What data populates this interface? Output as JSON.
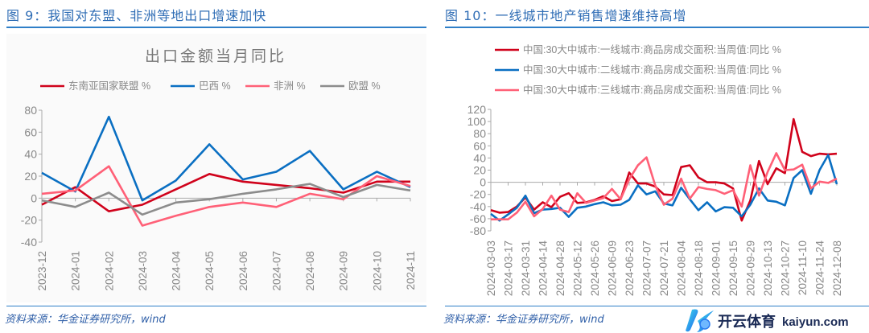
{
  "left": {
    "heading": "图 9：我国对东盟、非洲等地出口增速加快",
    "source": "资料来源：华金证券研究所，wind"
  },
  "right": {
    "heading": "图 10：一线城市地产销售增速维持高增",
    "source": "资料来源：华金证券研究所，wind"
  },
  "watermark": {
    "name": "开云体育",
    "domain": "kaiyun.com"
  },
  "chart_data": [
    {
      "type": "line",
      "title": "出口金额当月同比",
      "categories": [
        "2023-12",
        "2024-01",
        "2024-02",
        "2024-03",
        "2024-04",
        "2024-05",
        "2024-06",
        "2024-07",
        "2024-08",
        "2024-09",
        "2024-10",
        "2024-11"
      ],
      "ylim": [
        -40,
        80
      ],
      "yticks": [
        -40,
        -20,
        0,
        20,
        40,
        60,
        80
      ],
      "grid": false,
      "legend": "top",
      "series": [
        {
          "name": "东南亚国家联盟 %",
          "color": "#d0021b",
          "values": [
            -6,
            10,
            -12,
            -6,
            8,
            22,
            15,
            12,
            9,
            5,
            15,
            15
          ]
        },
        {
          "name": "巴西 %",
          "color": "#0a6fc2",
          "values": [
            23,
            6,
            74,
            -2,
            16,
            49,
            17,
            24,
            43,
            8,
            24,
            10
          ]
        },
        {
          "name": "非洲 %",
          "color": "#ff6077",
          "values": [
            4,
            7,
            29,
            -25,
            -16,
            -8,
            -4,
            -8,
            4,
            -1,
            20,
            11
          ]
        },
        {
          "name": "欧盟 %",
          "color": "#8c8c8c",
          "values": [
            -2,
            -8,
            5,
            -15,
            -4,
            -1,
            4,
            8,
            13,
            1,
            12,
            7
          ]
        }
      ]
    },
    {
      "type": "line",
      "title": "",
      "x_start": "2024-03-03",
      "x_step_days": 7,
      "tick_labels": [
        "2024-03-03",
        "2024-03-17",
        "2024-03-31",
        "2024-04-14",
        "2024-04-28",
        "2024-05-12",
        "2024-05-26",
        "2024-06-09",
        "2024-06-23",
        "2024-07-07",
        "2024-07-21",
        "2024-08-04",
        "2024-08-18",
        "2024-09-01",
        "2024-09-15",
        "2024-09-29",
        "2024-10-13",
        "2024-10-27",
        "2024-11-10",
        "2024-11-24",
        "2024-12-08"
      ],
      "ylim": [
        -80,
        120
      ],
      "yticks": [
        -80,
        -60,
        -40,
        -20,
        0,
        20,
        40,
        60,
        80,
        100,
        120
      ],
      "grid": false,
      "legend": "top",
      "series": [
        {
          "name": "中国:30大中城市:一线城市:商品房成交面积:当周值:同比 %",
          "color": "#d0021b",
          "values": [
            -46,
            -50,
            -49,
            -40,
            -25,
            -45,
            -33,
            -41,
            -24,
            -18,
            -34,
            -33,
            -29,
            -23,
            -31,
            -28,
            16,
            -2,
            -2,
            -7,
            -20,
            -21,
            25,
            28,
            8,
            0,
            0,
            -2,
            -10,
            -63,
            -30,
            35,
            -3,
            23,
            15,
            104,
            50,
            43,
            47,
            46,
            47
          ]
        },
        {
          "name": "中国:30大中城市:二线城市:商品房成交面积:当周值:同比 %",
          "color": "#0a6fc2",
          "values": [
            -52,
            -63,
            -53,
            -42,
            -22,
            -51,
            -45,
            -44,
            -42,
            -57,
            -42,
            -40,
            -36,
            -33,
            -38,
            -37,
            -29,
            -5,
            -20,
            -15,
            -35,
            -38,
            -9,
            -28,
            -46,
            -33,
            -48,
            -41,
            -42,
            -56,
            -37,
            -10,
            -30,
            -32,
            -38,
            7,
            20,
            -19,
            20,
            45,
            -3
          ]
        },
        {
          "name": "中国:30大中城市:三线城市:商品房成交面积:当周值:同比 %",
          "color": "#ff6077",
          "values": [
            -61,
            -61,
            -61,
            -50,
            -32,
            -56,
            -44,
            -22,
            -45,
            -49,
            -18,
            -34,
            -30,
            -26,
            -11,
            -28,
            5,
            28,
            41,
            -5,
            -37,
            -27,
            6,
            -27,
            -8,
            -11,
            -13,
            -19,
            -13,
            -40,
            28,
            -22,
            17,
            48,
            20,
            21,
            29,
            -10,
            1,
            -1,
            6
          ]
        }
      ]
    }
  ]
}
